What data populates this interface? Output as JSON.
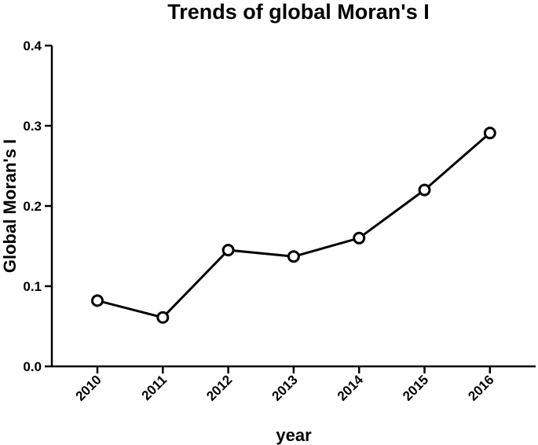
{
  "chart_data": {
    "type": "line",
    "title": "Trends of global Moran's I",
    "xlabel": "year",
    "ylabel": "Global Moran's I",
    "categories": [
      "2010",
      "2011",
      "2012",
      "2013",
      "2014",
      "2015",
      "2016"
    ],
    "series": [
      {
        "values": [
          0.082,
          0.061,
          0.145,
          0.137,
          0.16,
          0.22,
          0.291
        ]
      }
    ],
    "ylim": [
      0,
      0.4
    ],
    "yticks": [
      "0.0",
      "0.1",
      "0.2",
      "0.3",
      "0.4"
    ],
    "grid": false,
    "legend": "none",
    "marker": "open-circle",
    "colors": {
      "line": "#000000",
      "marker_fill": "#ffffff"
    }
  }
}
